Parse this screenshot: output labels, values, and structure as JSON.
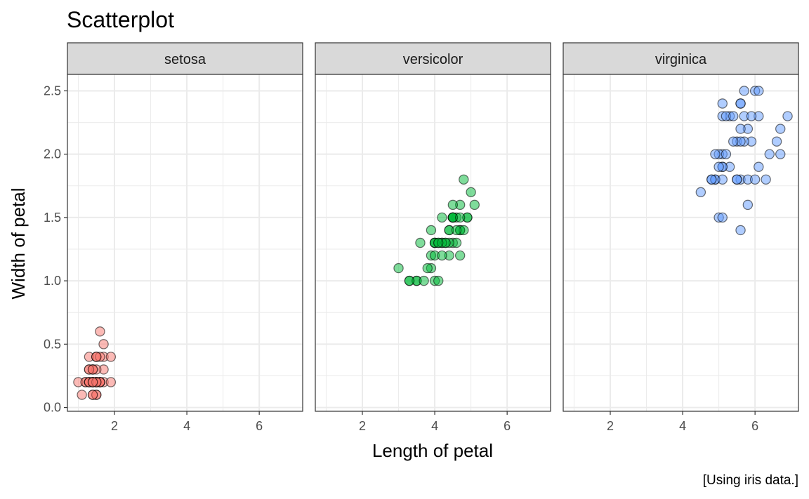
{
  "chart_data": {
    "type": "scatter",
    "title": "Scatterplot",
    "xlabel": "Length of petal",
    "ylabel": "Width of petal",
    "caption": "[Using iris data.]",
    "facet_by": "species",
    "xlim": [
      0.7,
      7.2
    ],
    "ylim": [
      -0.03,
      2.63
    ],
    "x_ticks": [
      2,
      4,
      6
    ],
    "x_tick_labels": [
      "2",
      "4",
      "6"
    ],
    "y_ticks": [
      0.0,
      0.5,
      1.0,
      1.5,
      2.0,
      2.5
    ],
    "y_tick_labels": [
      "0.0",
      "0.5",
      "1.0",
      "1.5",
      "2.0",
      "2.5"
    ],
    "grid": true,
    "legend": "none",
    "point_opacity": 0.5,
    "series": [
      {
        "name": "setosa",
        "color": "#F8766D",
        "points": [
          [
            1.4,
            0.2
          ],
          [
            1.4,
            0.2
          ],
          [
            1.3,
            0.2
          ],
          [
            1.5,
            0.2
          ],
          [
            1.4,
            0.2
          ],
          [
            1.7,
            0.4
          ],
          [
            1.4,
            0.3
          ],
          [
            1.5,
            0.2
          ],
          [
            1.4,
            0.2
          ],
          [
            1.5,
            0.1
          ],
          [
            1.5,
            0.2
          ],
          [
            1.6,
            0.2
          ],
          [
            1.4,
            0.1
          ],
          [
            1.1,
            0.1
          ],
          [
            1.2,
            0.2
          ],
          [
            1.5,
            0.4
          ],
          [
            1.3,
            0.4
          ],
          [
            1.4,
            0.3
          ],
          [
            1.7,
            0.3
          ],
          [
            1.5,
            0.3
          ],
          [
            1.7,
            0.2
          ],
          [
            1.5,
            0.4
          ],
          [
            1.0,
            0.2
          ],
          [
            1.7,
            0.5
          ],
          [
            1.9,
            0.2
          ],
          [
            1.6,
            0.2
          ],
          [
            1.6,
            0.4
          ],
          [
            1.5,
            0.2
          ],
          [
            1.4,
            0.2
          ],
          [
            1.6,
            0.2
          ],
          [
            1.6,
            0.2
          ],
          [
            1.5,
            0.4
          ],
          [
            1.5,
            0.1
          ],
          [
            1.4,
            0.2
          ],
          [
            1.5,
            0.2
          ],
          [
            1.2,
            0.2
          ],
          [
            1.3,
            0.2
          ],
          [
            1.4,
            0.1
          ],
          [
            1.3,
            0.2
          ],
          [
            1.5,
            0.2
          ],
          [
            1.3,
            0.3
          ],
          [
            1.3,
            0.3
          ],
          [
            1.3,
            0.2
          ],
          [
            1.6,
            0.6
          ],
          [
            1.9,
            0.4
          ],
          [
            1.4,
            0.3
          ],
          [
            1.6,
            0.2
          ],
          [
            1.4,
            0.2
          ],
          [
            1.5,
            0.2
          ],
          [
            1.4,
            0.2
          ]
        ]
      },
      {
        "name": "versicolor",
        "color": "#00BA38",
        "points": [
          [
            4.7,
            1.4
          ],
          [
            4.5,
            1.5
          ],
          [
            4.9,
            1.5
          ],
          [
            4.0,
            1.3
          ],
          [
            4.6,
            1.5
          ],
          [
            4.5,
            1.3
          ],
          [
            4.7,
            1.6
          ],
          [
            3.3,
            1.0
          ],
          [
            4.6,
            1.3
          ],
          [
            3.9,
            1.4
          ],
          [
            3.5,
            1.0
          ],
          [
            4.2,
            1.5
          ],
          [
            4.0,
            1.0
          ],
          [
            4.7,
            1.4
          ],
          [
            3.6,
            1.3
          ],
          [
            4.4,
            1.4
          ],
          [
            4.5,
            1.5
          ],
          [
            4.1,
            1.0
          ],
          [
            4.5,
            1.5
          ],
          [
            3.9,
            1.1
          ],
          [
            4.8,
            1.8
          ],
          [
            4.0,
            1.3
          ],
          [
            4.9,
            1.5
          ],
          [
            4.7,
            1.2
          ],
          [
            4.3,
            1.3
          ],
          [
            4.4,
            1.4
          ],
          [
            4.8,
            1.4
          ],
          [
            5.0,
            1.7
          ],
          [
            4.5,
            1.5
          ],
          [
            3.5,
            1.0
          ],
          [
            3.8,
            1.1
          ],
          [
            3.7,
            1.0
          ],
          [
            3.9,
            1.2
          ],
          [
            5.1,
            1.6
          ],
          [
            4.5,
            1.5
          ],
          [
            4.5,
            1.6
          ],
          [
            4.7,
            1.5
          ],
          [
            4.4,
            1.3
          ],
          [
            4.1,
            1.3
          ],
          [
            4.0,
            1.3
          ],
          [
            4.4,
            1.2
          ],
          [
            4.6,
            1.4
          ],
          [
            4.0,
            1.2
          ],
          [
            3.3,
            1.0
          ],
          [
            4.2,
            1.3
          ],
          [
            4.2,
            1.2
          ],
          [
            4.2,
            1.3
          ],
          [
            4.3,
            1.3
          ],
          [
            3.0,
            1.1
          ],
          [
            4.1,
            1.3
          ]
        ]
      },
      {
        "name": "virginica",
        "color": "#619CFF",
        "points": [
          [
            6.0,
            2.5
          ],
          [
            5.1,
            1.9
          ],
          [
            5.9,
            2.1
          ],
          [
            5.6,
            1.8
          ],
          [
            5.8,
            2.2
          ],
          [
            6.6,
            2.1
          ],
          [
            4.5,
            1.7
          ],
          [
            6.3,
            1.8
          ],
          [
            5.8,
            1.8
          ],
          [
            6.1,
            2.5
          ],
          [
            5.1,
            2.0
          ],
          [
            5.3,
            1.9
          ],
          [
            5.5,
            2.1
          ],
          [
            5.0,
            2.0
          ],
          [
            5.1,
            2.4
          ],
          [
            5.3,
            2.3
          ],
          [
            5.5,
            1.8
          ],
          [
            6.7,
            2.2
          ],
          [
            6.9,
            2.3
          ],
          [
            5.0,
            1.5
          ],
          [
            5.7,
            2.3
          ],
          [
            4.9,
            2.0
          ],
          [
            6.7,
            2.0
          ],
          [
            4.9,
            1.8
          ],
          [
            5.7,
            2.1
          ],
          [
            6.0,
            1.8
          ],
          [
            4.8,
            1.8
          ],
          [
            4.9,
            1.8
          ],
          [
            5.6,
            2.1
          ],
          [
            5.8,
            1.6
          ],
          [
            6.1,
            1.9
          ],
          [
            6.4,
            2.0
          ],
          [
            5.6,
            2.2
          ],
          [
            5.1,
            1.5
          ],
          [
            5.6,
            1.4
          ],
          [
            6.1,
            2.3
          ],
          [
            5.6,
            2.4
          ],
          [
            5.5,
            1.8
          ],
          [
            4.8,
            1.8
          ],
          [
            5.4,
            2.1
          ],
          [
            5.6,
            2.4
          ],
          [
            5.1,
            2.3
          ],
          [
            5.1,
            1.9
          ],
          [
            5.9,
            2.3
          ],
          [
            5.7,
            2.5
          ],
          [
            5.2,
            2.3
          ],
          [
            5.0,
            1.9
          ],
          [
            5.2,
            2.0
          ],
          [
            5.4,
            2.3
          ],
          [
            5.1,
            1.8
          ]
        ]
      }
    ]
  }
}
